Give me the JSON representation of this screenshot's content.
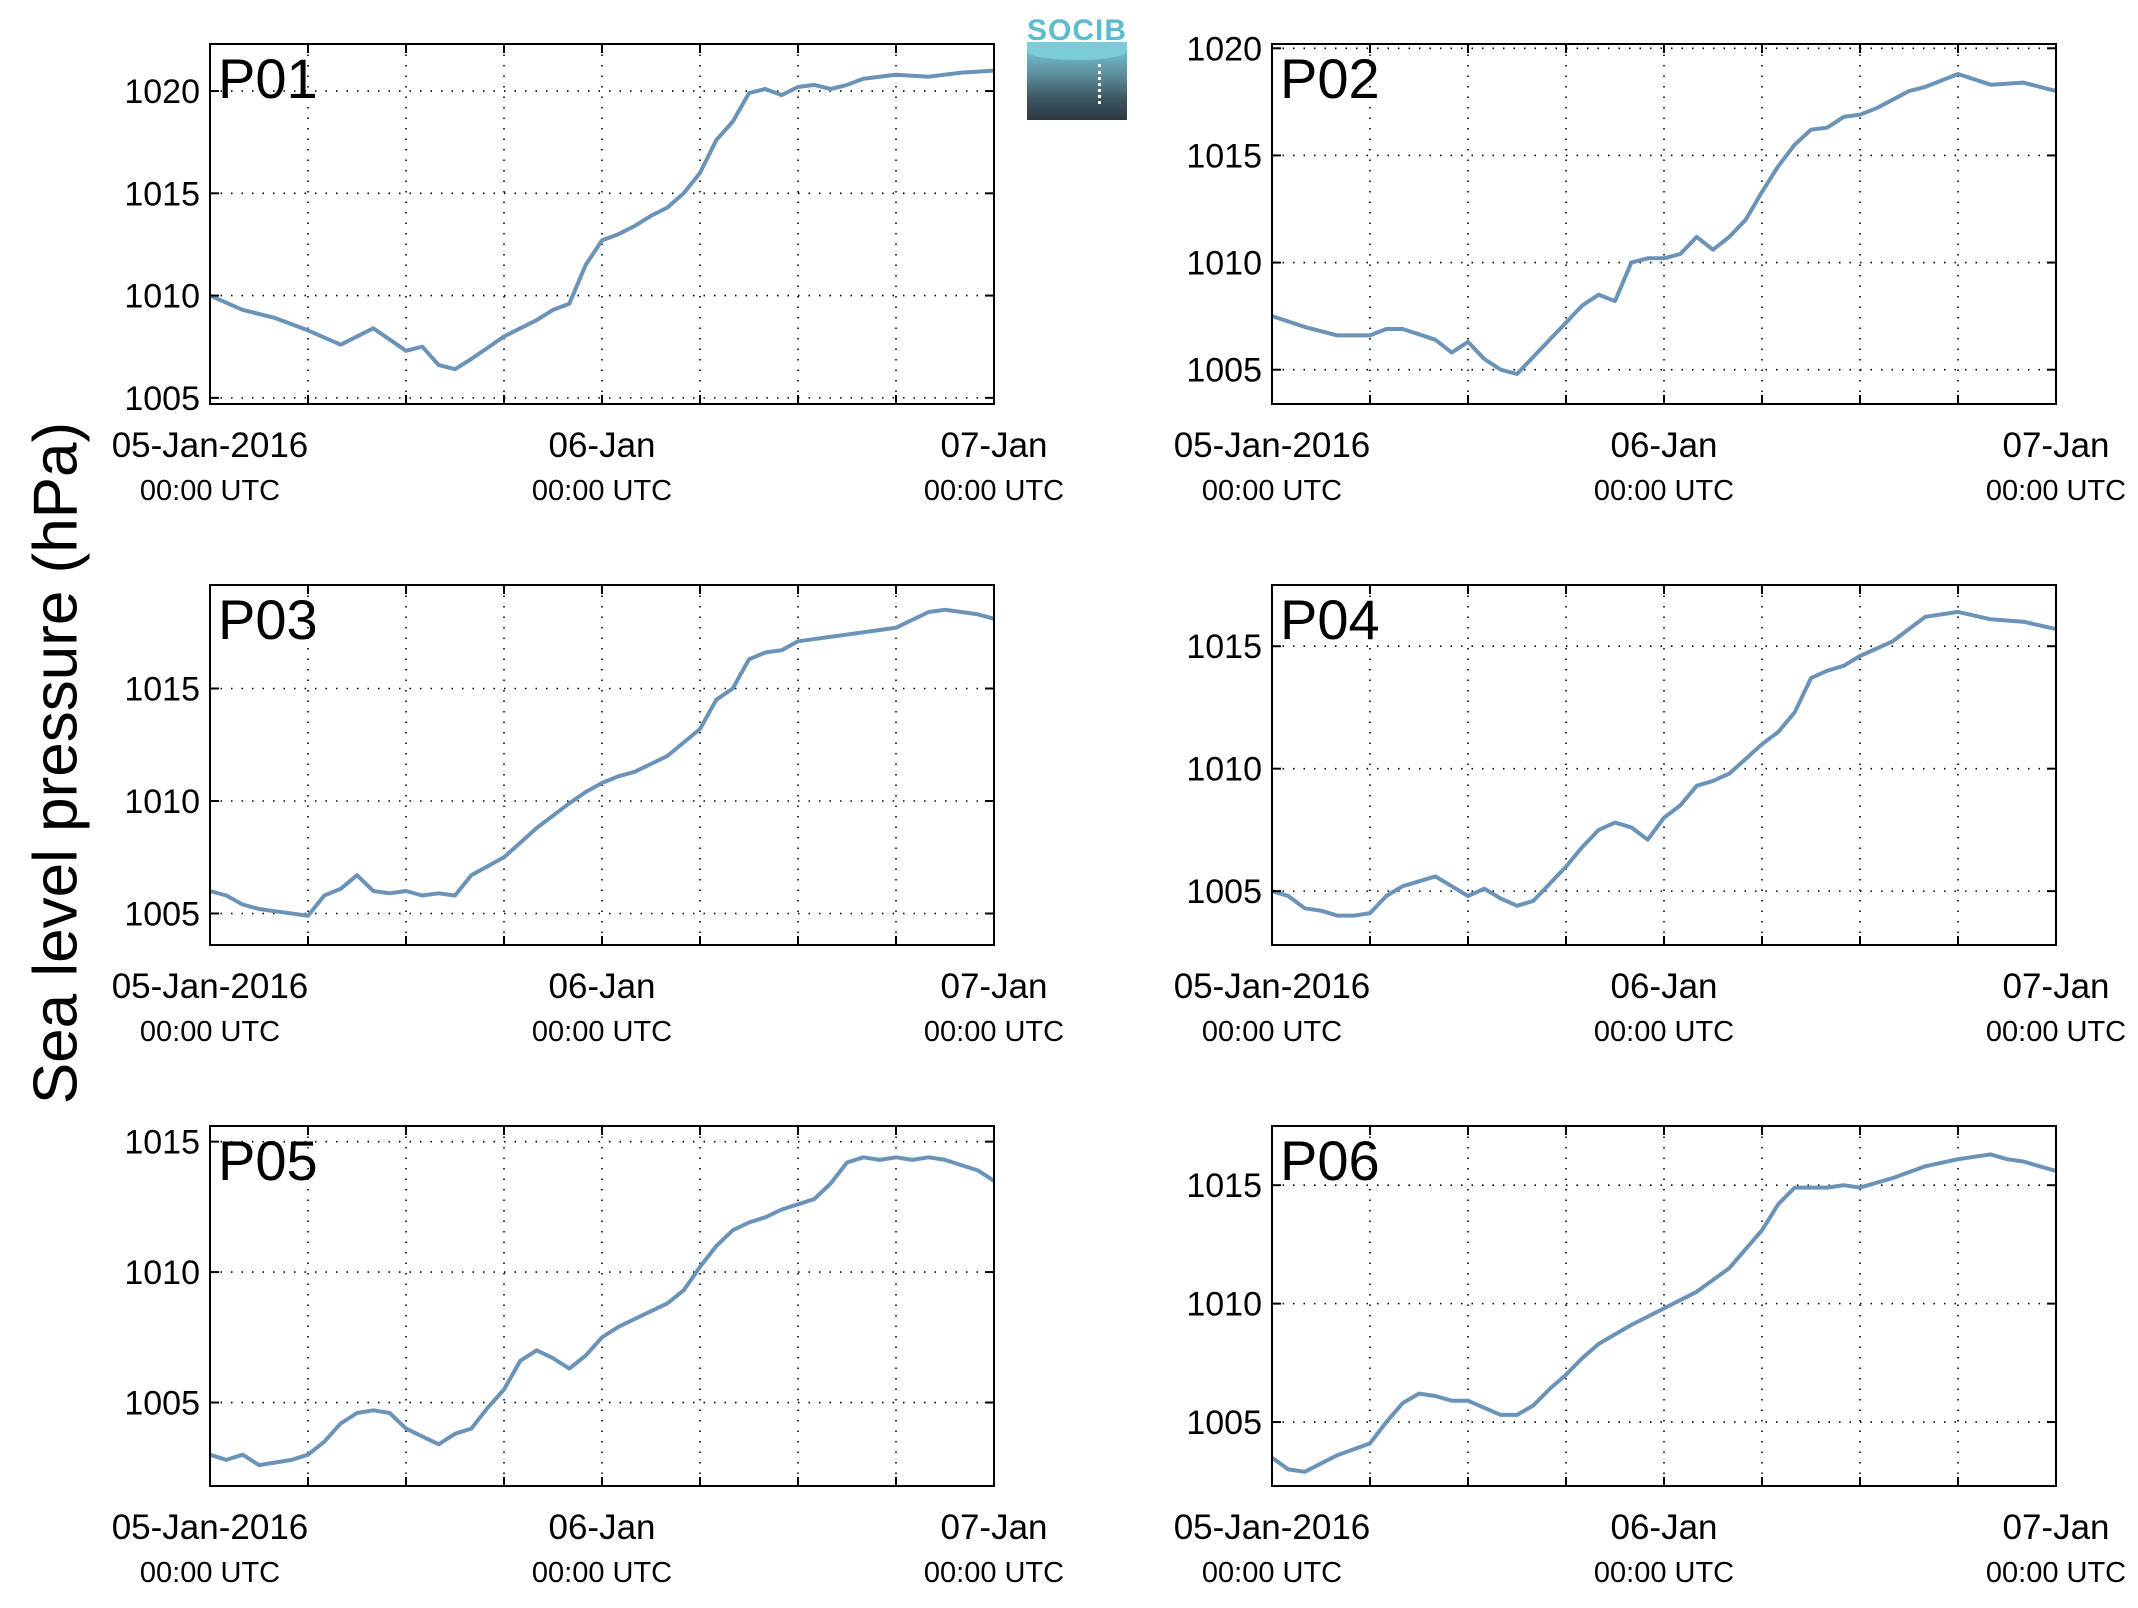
{
  "figure": {
    "ylabel": "Sea level pressure (hPa)",
    "logo_text": "SOCIB"
  },
  "x_tick_labels": [
    {
      "top": "05-Jan-2016",
      "bottom": "00:00 UTC"
    },
    {
      "top": "06-Jan",
      "bottom": "00:00 UTC"
    },
    {
      "top": "07-Jan",
      "bottom": "00:00 UTC"
    }
  ],
  "colors": {
    "line": "#6a93b7",
    "title": "#ff0000",
    "axes": "#000000",
    "grid": "#000000"
  },
  "chart_data": [
    {
      "type": "line",
      "title": "P01",
      "x_unit": "hours since 05-Jan-2016 00:00 UTC",
      "xlim": [
        0,
        48
      ],
      "ylim": [
        1004.7,
        1022.3
      ],
      "yticks": [
        1005,
        1010,
        1015,
        1020
      ],
      "grid": true,
      "x": [
        0,
        2,
        4,
        6,
        8,
        10,
        12,
        13,
        14,
        15,
        16,
        18,
        20,
        21,
        22,
        23,
        24,
        25,
        26,
        27,
        28,
        29,
        30,
        31,
        32,
        33,
        34,
        35,
        36,
        37,
        38,
        39,
        40,
        42,
        44,
        46,
        48
      ],
      "y": [
        1010.0,
        1009.3,
        1008.9,
        1008.3,
        1007.6,
        1008.4,
        1007.3,
        1007.5,
        1006.6,
        1006.4,
        1006.9,
        1008.0,
        1008.8,
        1009.3,
        1009.6,
        1011.5,
        1012.7,
        1013.0,
        1013.4,
        1013.9,
        1014.3,
        1015.0,
        1016.0,
        1017.6,
        1018.5,
        1019.9,
        1020.1,
        1019.8,
        1020.2,
        1020.3,
        1020.1,
        1020.3,
        1020.6,
        1020.8,
        1020.7,
        1020.9,
        1021.0
      ]
    },
    {
      "type": "line",
      "title": "P02",
      "x_unit": "hours since 05-Jan-2016 00:00 UTC",
      "xlim": [
        0,
        48
      ],
      "ylim": [
        1003.4,
        1020.2
      ],
      "yticks": [
        1005,
        1010,
        1015,
        1020
      ],
      "grid": true,
      "x": [
        0,
        2,
        4,
        6,
        7,
        8,
        10,
        11,
        12,
        13,
        14,
        15,
        16,
        18,
        19,
        20,
        21,
        22,
        23,
        24,
        25,
        26,
        27,
        28,
        29,
        30,
        31,
        32,
        33,
        34,
        35,
        36,
        37,
        38,
        39,
        40,
        42,
        44,
        46,
        48
      ],
      "y": [
        1007.5,
        1007.0,
        1006.6,
        1006.6,
        1006.9,
        1006.9,
        1006.4,
        1005.8,
        1006.3,
        1005.5,
        1005.0,
        1004.8,
        1005.6,
        1007.2,
        1008.0,
        1008.5,
        1008.2,
        1010.0,
        1010.2,
        1010.2,
        1010.4,
        1011.2,
        1010.6,
        1011.2,
        1012.0,
        1013.3,
        1014.5,
        1015.5,
        1016.2,
        1016.3,
        1016.8,
        1016.9,
        1017.2,
        1017.6,
        1018.0,
        1018.2,
        1018.8,
        1018.3,
        1018.4,
        1018.0
      ]
    },
    {
      "type": "line",
      "title": "P03",
      "x_unit": "hours since 05-Jan-2016 00:00 UTC",
      "xlim": [
        0,
        48
      ],
      "ylim": [
        1003.6,
        1019.6
      ],
      "yticks": [
        1005,
        1010,
        1015
      ],
      "grid": true,
      "x": [
        0,
        1,
        2,
        3,
        4,
        5,
        6,
        7,
        8,
        9,
        10,
        11,
        12,
        13,
        14,
        15,
        16,
        18,
        20,
        22,
        23,
        24,
        25,
        26,
        28,
        30,
        31,
        32,
        33,
        34,
        35,
        36,
        38,
        40,
        42,
        44,
        45,
        46,
        47,
        48
      ],
      "y": [
        1006.0,
        1005.8,
        1005.4,
        1005.2,
        1005.1,
        1005.0,
        1004.9,
        1005.8,
        1006.1,
        1006.7,
        1006.0,
        1005.9,
        1006.0,
        1005.8,
        1005.9,
        1005.8,
        1006.7,
        1007.5,
        1008.8,
        1009.9,
        1010.4,
        1010.8,
        1011.1,
        1011.3,
        1012.0,
        1013.2,
        1014.5,
        1015.0,
        1016.3,
        1016.6,
        1016.7,
        1017.1,
        1017.3,
        1017.5,
        1017.7,
        1018.4,
        1018.5,
        1018.4,
        1018.3,
        1018.1
      ]
    },
    {
      "type": "line",
      "title": "P04",
      "x_unit": "hours since 05-Jan-2016 00:00 UTC",
      "xlim": [
        0,
        48
      ],
      "ylim": [
        1002.8,
        1017.5
      ],
      "yticks": [
        1005,
        1010,
        1015
      ],
      "grid": true,
      "x": [
        0,
        1,
        2,
        3,
        4,
        5,
        6,
        7,
        8,
        9,
        10,
        11,
        12,
        13,
        14,
        15,
        16,
        17,
        18,
        19,
        20,
        21,
        22,
        23,
        24,
        25,
        26,
        27,
        28,
        29,
        30,
        31,
        32,
        33,
        34,
        35,
        36,
        38,
        40,
        42,
        44,
        46,
        48
      ],
      "y": [
        1005.0,
        1004.8,
        1004.3,
        1004.2,
        1004.0,
        1004.0,
        1004.1,
        1004.8,
        1005.2,
        1005.4,
        1005.6,
        1005.2,
        1004.8,
        1005.1,
        1004.7,
        1004.4,
        1004.6,
        1005.3,
        1006.0,
        1006.8,
        1007.5,
        1007.8,
        1007.6,
        1007.1,
        1008.0,
        1008.5,
        1009.3,
        1009.5,
        1009.8,
        1010.4,
        1011.0,
        1011.5,
        1012.3,
        1013.7,
        1014.0,
        1014.2,
        1014.6,
        1015.2,
        1016.2,
        1016.4,
        1016.1,
        1016.0,
        1015.7
      ]
    },
    {
      "type": "line",
      "title": "P05",
      "x_unit": "hours since 05-Jan-2016 00:00 UTC",
      "xlim": [
        0,
        48
      ],
      "ylim": [
        1001.8,
        1015.6
      ],
      "yticks": [
        1005,
        1010,
        1015
      ],
      "grid": true,
      "x": [
        0,
        1,
        2,
        3,
        4,
        5,
        6,
        7,
        8,
        9,
        10,
        11,
        12,
        13,
        14,
        15,
        16,
        17,
        18,
        19,
        20,
        21,
        22,
        23,
        24,
        25,
        26,
        27,
        28,
        29,
        30,
        31,
        32,
        33,
        34,
        35,
        36,
        37,
        38,
        39,
        40,
        41,
        42,
        43,
        44,
        45,
        46,
        47,
        48
      ],
      "y": [
        1003.0,
        1002.8,
        1003.0,
        1002.6,
        1002.7,
        1002.8,
        1003.0,
        1003.5,
        1004.2,
        1004.6,
        1004.7,
        1004.6,
        1004.0,
        1003.7,
        1003.4,
        1003.8,
        1004.0,
        1004.8,
        1005.5,
        1006.6,
        1007.0,
        1006.7,
        1006.3,
        1006.8,
        1007.5,
        1007.9,
        1008.2,
        1008.5,
        1008.8,
        1009.3,
        1010.2,
        1011.0,
        1011.6,
        1011.9,
        1012.1,
        1012.4,
        1012.6,
        1012.8,
        1013.4,
        1014.2,
        1014.4,
        1014.3,
        1014.4,
        1014.3,
        1014.4,
        1014.3,
        1014.1,
        1013.9,
        1013.5
      ]
    },
    {
      "type": "line",
      "title": "P06",
      "x_unit": "hours since 05-Jan-2016 00:00 UTC",
      "xlim": [
        0,
        48
      ],
      "ylim": [
        1002.3,
        1017.5
      ],
      "yticks": [
        1005,
        1010,
        1015
      ],
      "grid": true,
      "x": [
        0,
        1,
        2,
        4,
        6,
        7,
        8,
        9,
        10,
        11,
        12,
        13,
        14,
        15,
        16,
        17,
        18,
        19,
        20,
        22,
        24,
        26,
        28,
        30,
        31,
        32,
        33,
        34,
        35,
        36,
        38,
        40,
        42,
        44,
        45,
        46,
        47,
        48
      ],
      "y": [
        1003.5,
        1003.0,
        1002.9,
        1003.6,
        1004.1,
        1005.0,
        1005.8,
        1006.2,
        1006.1,
        1005.9,
        1005.9,
        1005.6,
        1005.3,
        1005.3,
        1005.7,
        1006.4,
        1007.0,
        1007.7,
        1008.3,
        1009.1,
        1009.8,
        1010.5,
        1011.5,
        1013.1,
        1014.2,
        1014.9,
        1014.9,
        1014.9,
        1015.0,
        1014.9,
        1015.3,
        1015.8,
        1016.1,
        1016.3,
        1016.1,
        1016.0,
        1015.8,
        1015.6
      ]
    }
  ]
}
